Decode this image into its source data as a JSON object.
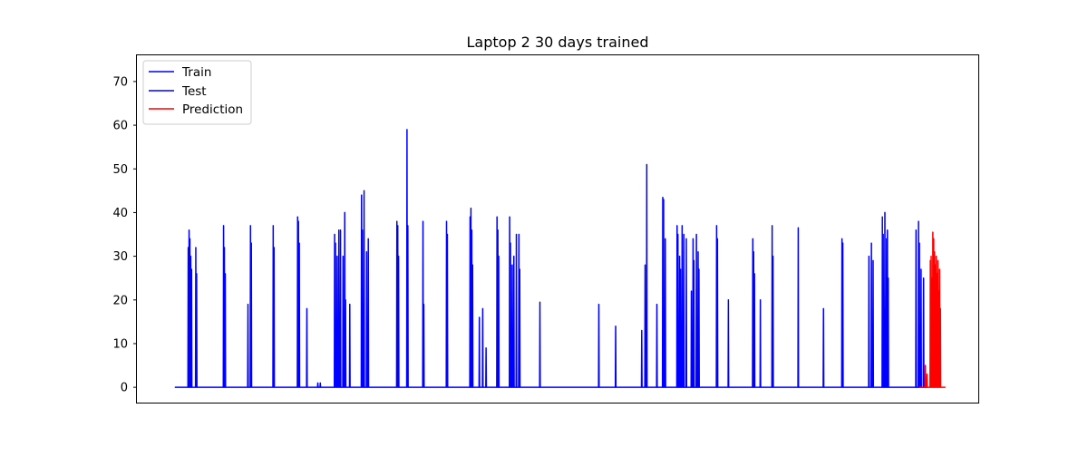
{
  "chart_data": {
    "type": "line",
    "title": "Laptop 2 30 days trained",
    "xlabel": "",
    "ylabel": "",
    "ylim": [
      -3.5,
      76
    ],
    "xlim": [
      0,
      1000
    ],
    "yticks": [
      0,
      10,
      20,
      30,
      40,
      50,
      60,
      70
    ],
    "x_ticks_shown": false,
    "grid": false,
    "legend": {
      "placement": "top-left",
      "entries": [
        {
          "label": "Train",
          "color": "#0000ff"
        },
        {
          "label": "Test",
          "color": "#0000ff"
        },
        {
          "label": "Prediction",
          "color": "#ff0000"
        }
      ]
    },
    "series": [
      {
        "name": "Train",
        "color": "#0000ff",
        "baseline": 0,
        "range": [
          45,
          926
        ],
        "spikes": [
          [
            61,
            32
          ],
          [
            62,
            36
          ],
          [
            63,
            34
          ],
          [
            64,
            30
          ],
          [
            65,
            27
          ],
          [
            70,
            32
          ],
          [
            71,
            26
          ],
          [
            103,
            37
          ],
          [
            104,
            32
          ],
          [
            105,
            26
          ],
          [
            132,
            19
          ],
          [
            135,
            37
          ],
          [
            136,
            33
          ],
          [
            162,
            37
          ],
          [
            163,
            32
          ],
          [
            191,
            39
          ],
          [
            192,
            38
          ],
          [
            193,
            33
          ],
          [
            202,
            18
          ],
          [
            215,
            1
          ],
          [
            218,
            1
          ],
          [
            235,
            35
          ],
          [
            236,
            33
          ],
          [
            238,
            30
          ],
          [
            240,
            36
          ],
          [
            242,
            36
          ],
          [
            245,
            30
          ],
          [
            247,
            40
          ],
          [
            248,
            20
          ],
          [
            253,
            19
          ],
          [
            267,
            44
          ],
          [
            268,
            36
          ],
          [
            270,
            45
          ],
          [
            273,
            31
          ],
          [
            275,
            34
          ],
          [
            309,
            38
          ],
          [
            310,
            37
          ],
          [
            311,
            30
          ],
          [
            321,
            59
          ],
          [
            322,
            37
          ],
          [
            340,
            38
          ],
          [
            341,
            19
          ],
          [
            368,
            38
          ],
          [
            369,
            35
          ],
          [
            396,
            39
          ],
          [
            397,
            41
          ],
          [
            398,
            36
          ],
          [
            399,
            28
          ],
          [
            407,
            16
          ],
          [
            411,
            18
          ],
          [
            415,
            9
          ],
          [
            428,
            39
          ],
          [
            429,
            36
          ],
          [
            430,
            30
          ],
          [
            443,
            39
          ],
          [
            444,
            33
          ],
          [
            446,
            28
          ],
          [
            448,
            30
          ],
          [
            451,
            35
          ],
          [
            454,
            35
          ],
          [
            455,
            27
          ],
          [
            479,
            19.5
          ],
          [
            549,
            19
          ],
          [
            569,
            14
          ],
          [
            600,
            13
          ],
          [
            604,
            28
          ],
          [
            606,
            51
          ],
          [
            618,
            19
          ],
          [
            625,
            43.5
          ],
          [
            626,
            43
          ],
          [
            628,
            34
          ],
          [
            642,
            37
          ],
          [
            643,
            35
          ],
          [
            645,
            30
          ],
          [
            646,
            27
          ],
          [
            648,
            37
          ],
          [
            650,
            35
          ],
          [
            653,
            34
          ],
          [
            659,
            22
          ],
          [
            661,
            34
          ],
          [
            662,
            29
          ],
          [
            665,
            35
          ],
          [
            667,
            31
          ],
          [
            668,
            27
          ],
          [
            689,
            37
          ],
          [
            690,
            34
          ],
          [
            703,
            20
          ],
          [
            732,
            34
          ],
          [
            733,
            31
          ],
          [
            734,
            26
          ],
          [
            741,
            20
          ],
          [
            755,
            37
          ],
          [
            756,
            30
          ],
          [
            786,
            36.5
          ],
          [
            816,
            18
          ],
          [
            838,
            34
          ],
          [
            839,
            33
          ],
          [
            870,
            30
          ],
          [
            873,
            33
          ],
          [
            875,
            29
          ],
          [
            886,
            39
          ],
          [
            887,
            35
          ],
          [
            889,
            40
          ],
          [
            891,
            34
          ],
          [
            892,
            36
          ],
          [
            893,
            25
          ],
          [
            926,
            36
          ]
        ]
      },
      {
        "name": "Test",
        "color": "#0000ff",
        "baseline": 0,
        "range": [
          926,
          939
        ],
        "spikes": [
          [
            929,
            38
          ],
          [
            930,
            33
          ],
          [
            932,
            27
          ],
          [
            935,
            25
          ]
        ]
      },
      {
        "name": "Prediction",
        "color": "#ff0000",
        "baseline": 0,
        "range": [
          930,
          961
        ],
        "spikes": [
          [
            937,
            5
          ],
          [
            939,
            3
          ],
          [
            943,
            29
          ],
          [
            944,
            30
          ],
          [
            945,
            25
          ],
          [
            946,
            35.5
          ],
          [
            947,
            34
          ],
          [
            948,
            31
          ],
          [
            949,
            28
          ],
          [
            950,
            30
          ],
          [
            951,
            26
          ],
          [
            952,
            29
          ],
          [
            953,
            22
          ],
          [
            954,
            27
          ],
          [
            955,
            18
          ]
        ]
      }
    ]
  }
}
